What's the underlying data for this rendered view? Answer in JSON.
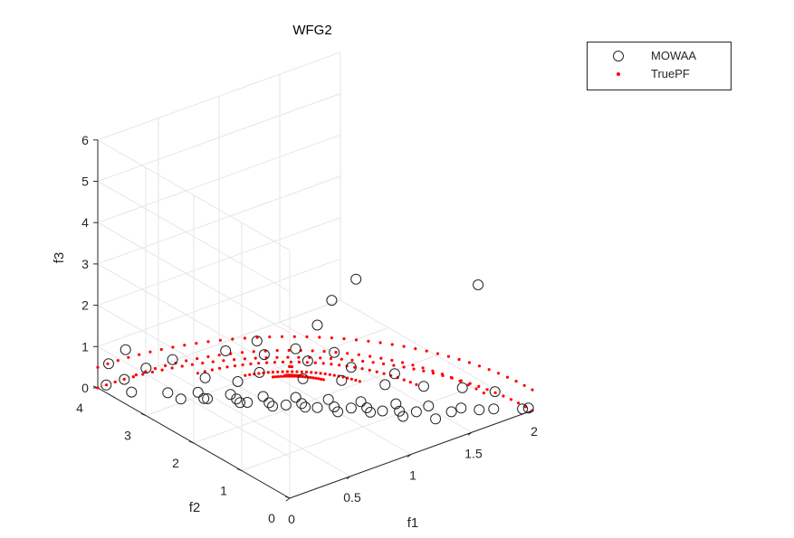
{
  "chart_data": {
    "type": "scatter3d",
    "title": "WFG2",
    "xlabel": "f1",
    "ylabel": "f2",
    "zlabel": "f3",
    "xlim": [
      0,
      2
    ],
    "ylim": [
      0,
      4
    ],
    "zlim": [
      0,
      6
    ],
    "xticks": [
      0,
      0.5,
      1,
      1.5,
      2
    ],
    "yticks": [
      0,
      1,
      2,
      3,
      4
    ],
    "zticks": [
      0,
      1,
      2,
      3,
      4,
      5,
      6
    ],
    "xtick_labels": [
      "0",
      "0.5",
      "1",
      "1.5",
      "2"
    ],
    "ytick_labels": [
      "0",
      "1",
      "2",
      "3",
      "4"
    ],
    "ztick_labels": [
      "0",
      "1",
      "2",
      "3",
      "4",
      "5",
      "6"
    ],
    "grid": true,
    "legend_position": "top-right",
    "legend": [
      "MOWAA",
      "TruePF"
    ],
    "series": [
      {
        "name": "MOWAA",
        "marker": "circle",
        "color": "#262626",
        "points": [
          [
            0.05,
            3.95,
            0.05
          ],
          [
            0.12,
            3.6,
            0.04
          ],
          [
            0.3,
            3.3,
            0.03
          ],
          [
            0.45,
            3.05,
            0.05
          ],
          [
            0.6,
            2.75,
            0.04
          ],
          [
            0.75,
            2.45,
            0.03
          ],
          [
            0.9,
            2.15,
            0.05
          ],
          [
            1.05,
            1.85,
            0.04
          ],
          [
            1.2,
            1.55,
            0.03
          ],
          [
            1.35,
            1.2,
            0.05
          ],
          [
            1.5,
            0.9,
            0.04
          ],
          [
            1.65,
            0.6,
            0.03
          ],
          [
            1.8,
            0.3,
            0.05
          ],
          [
            1.95,
            0.08,
            0.04
          ],
          [
            1.98,
            0.03,
            0.06
          ],
          [
            0.35,
            2.6,
            0.3
          ],
          [
            0.5,
            2.3,
            0.25
          ],
          [
            0.65,
            2.0,
            0.2
          ],
          [
            0.8,
            1.7,
            0.22
          ],
          [
            0.95,
            1.4,
            0.15
          ],
          [
            1.1,
            1.1,
            0.18
          ],
          [
            1.25,
            0.8,
            0.12
          ],
          [
            1.4,
            0.5,
            0.1
          ],
          [
            0.25,
            2.9,
            0.2
          ],
          [
            0.55,
            2.5,
            0.15
          ],
          [
            0.7,
            2.2,
            0.1
          ],
          [
            0.85,
            1.9,
            0.12
          ],
          [
            1.0,
            1.6,
            0.08
          ],
          [
            1.15,
            1.3,
            0.1
          ],
          [
            1.3,
            1.0,
            0.06
          ],
          [
            0.4,
            2.8,
            0.12
          ],
          [
            0.6,
            2.4,
            0.08
          ],
          [
            0.78,
            2.05,
            0.06
          ],
          [
            0.92,
            1.75,
            0.05
          ],
          [
            1.08,
            1.45,
            0.07
          ],
          [
            1.22,
            1.15,
            0.05
          ],
          [
            1.38,
            0.85,
            0.06
          ],
          [
            1.55,
            0.55,
            0.08
          ],
          [
            1.7,
            0.35,
            0.1
          ],
          [
            0.2,
            3.5,
            0.6
          ],
          [
            0.3,
            3.2,
            0.9
          ],
          [
            0.45,
            2.9,
            0.5
          ],
          [
            0.6,
            2.6,
            0.45
          ],
          [
            0.1,
            3.7,
            0.3
          ],
          [
            0.15,
            3.8,
            0.9
          ],
          [
            0.05,
            3.9,
            0.6
          ],
          [
            0.7,
            2.4,
            0.7
          ],
          [
            0.9,
            2.0,
            0.6
          ],
          [
            1.1,
            1.7,
            0.55
          ],
          [
            1.3,
            1.3,
            0.5
          ],
          [
            1.5,
            1.0,
            0.45
          ],
          [
            1.7,
            0.7,
            0.4
          ],
          [
            1.85,
            0.4,
            0.35
          ],
          [
            0.5,
            2.6,
            1.3
          ],
          [
            0.7,
            2.3,
            1.2
          ],
          [
            0.9,
            1.9,
            1.1
          ],
          [
            1.1,
            1.5,
            1.0
          ],
          [
            1.3,
            1.1,
            0.9
          ],
          [
            0.6,
            2.2,
            1.7
          ],
          [
            0.8,
            1.9,
            1.5
          ],
          [
            1.0,
            1.6,
            1.4
          ],
          [
            0.9,
            1.7,
            2.1
          ],
          [
            0.9,
            1.4,
            2.9
          ],
          [
            1.1,
            1.4,
            3.2
          ],
          [
            1.85,
            0.75,
            2.7
          ]
        ]
      },
      {
        "name": "TruePF",
        "marker": "dot",
        "color": "#ff0000",
        "fronts": [
          {
            "radius": 2.0,
            "z": 0.0,
            "tmin": 0.0,
            "tmax": 1.5708,
            "n": 46
          },
          {
            "radius": 2.0,
            "z": 0.5,
            "tmin": 0.0,
            "tmax": 1.5708,
            "n": 40
          },
          {
            "radius": 1.6,
            "z": 0.85,
            "tmin": 0.0,
            "tmax": 1.5708,
            "n": 34
          },
          {
            "radius": 1.2,
            "z": 1.25,
            "tmin": 0.15,
            "tmax": 1.42,
            "n": 30
          },
          {
            "radius": 0.8,
            "z": 1.7,
            "tmin": 0.3,
            "tmax": 1.27,
            "n": 26
          },
          {
            "radius": 0.5,
            "z": 2.1,
            "tmin": 0.45,
            "tmax": 1.12,
            "n": 20
          },
          {
            "radius": 0.25,
            "z": 2.55,
            "tmin": 0.55,
            "tmax": 1.02,
            "n": 12
          },
          {
            "radius": 0.05,
            "z": 3.1,
            "tmin": 0.6,
            "tmax": 0.95,
            "n": 3
          }
        ]
      }
    ]
  }
}
